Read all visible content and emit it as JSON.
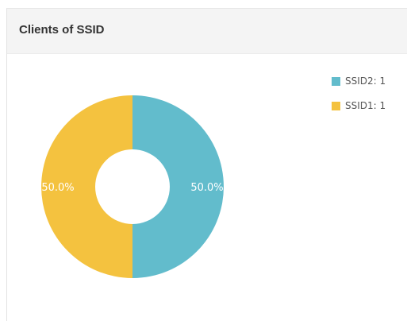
{
  "panel": {
    "title": "Clients of SSID"
  },
  "chart_data": {
    "type": "pie",
    "variant": "donut",
    "title": "Clients of SSID",
    "categories": [
      "SSID2",
      "SSID1"
    ],
    "values": [
      1,
      1
    ],
    "percent_labels": [
      "50.0%",
      "50.0%"
    ],
    "legend_labels": [
      "SSID2: 1",
      "SSID1: 1"
    ],
    "colors": [
      "#62bccc",
      "#f4c23f"
    ],
    "legend": "top-right"
  }
}
